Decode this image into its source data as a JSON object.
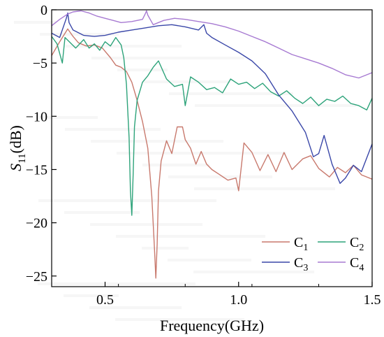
{
  "chart_data": {
    "type": "line",
    "title": "",
    "xlabel": "Frequency(GHz)",
    "ylabel": "S11(dB)",
    "ylabel_main": "S",
    "ylabel_sub": "11",
    "ylabel_unit": "(dB)",
    "xlim": [
      0.3,
      1.5
    ],
    "ylim": [
      -26,
      0
    ],
    "x_ticks": [
      0.5,
      1.0,
      1.5
    ],
    "x_tick_labels": [
      "0.5",
      "1.0",
      "1.5"
    ],
    "y_ticks": [
      0,
      -5,
      -10,
      -15,
      -20,
      -25
    ],
    "y_tick_labels": [
      "0",
      "−5",
      "−10",
      "−15",
      "−20",
      "−25"
    ],
    "grid": false,
    "legend_position": "bottom-right",
    "series": [
      {
        "name": "C1",
        "label_main": "C",
        "label_sub": "1",
        "color": "#c8796d",
        "x": [
          0.3,
          0.33,
          0.36,
          0.38,
          0.4,
          0.43,
          0.46,
          0.49,
          0.52,
          0.54,
          0.56,
          0.58,
          0.6,
          0.62,
          0.64,
          0.66,
          0.675,
          0.685,
          0.69,
          0.695,
          0.7,
          0.71,
          0.73,
          0.75,
          0.77,
          0.79,
          0.8,
          0.82,
          0.84,
          0.86,
          0.88,
          0.9,
          0.93,
          0.96,
          0.99,
          1.0,
          1.02,
          1.05,
          1.08,
          1.11,
          1.14,
          1.17,
          1.2,
          1.24,
          1.27,
          1.3,
          1.34,
          1.37,
          1.4,
          1.43,
          1.46,
          1.5
        ],
        "y": [
          -4.3,
          -3.0,
          -1.8,
          -2.5,
          -3.1,
          -3.4,
          -3.3,
          -3.6,
          -4.5,
          -5.2,
          -5.4,
          -5.8,
          -6.8,
          -8.5,
          -10.5,
          -13.0,
          -17.5,
          -22.5,
          -25.2,
          -22.0,
          -17.0,
          -14.2,
          -12.3,
          -13.5,
          -11.0,
          -11.0,
          -12.2,
          -13.0,
          -14.5,
          -13.3,
          -14.5,
          -15.0,
          -15.5,
          -16.0,
          -15.8,
          -17.0,
          -12.5,
          -13.4,
          -15.1,
          -13.6,
          -15.2,
          -13.4,
          -15.0,
          -14.0,
          -13.7,
          -14.9,
          -15.7,
          -14.8,
          -15.3,
          -14.6,
          -15.5,
          -15.9
        ]
      },
      {
        "name": "C2",
        "label_main": "C",
        "label_sub": "2",
        "color": "#2da37a",
        "x": [
          0.3,
          0.32,
          0.34,
          0.35,
          0.37,
          0.39,
          0.42,
          0.44,
          0.46,
          0.48,
          0.5,
          0.52,
          0.54,
          0.56,
          0.57,
          0.58,
          0.59,
          0.595,
          0.6,
          0.605,
          0.61,
          0.62,
          0.64,
          0.66,
          0.68,
          0.7,
          0.73,
          0.76,
          0.79,
          0.8,
          0.82,
          0.85,
          0.88,
          0.91,
          0.94,
          0.97,
          1.0,
          1.03,
          1.06,
          1.09,
          1.12,
          1.15,
          1.18,
          1.21,
          1.24,
          1.27,
          1.3,
          1.33,
          1.36,
          1.39,
          1.42,
          1.45,
          1.48,
          1.5
        ],
        "y": [
          -2.5,
          -3.2,
          -5.0,
          -2.6,
          -3.1,
          -3.6,
          -2.8,
          -3.6,
          -3.2,
          -3.8,
          -3.0,
          -3.4,
          -2.6,
          -3.3,
          -4.5,
          -7.0,
          -12.0,
          -17.0,
          -19.3,
          -15.5,
          -11.0,
          -8.5,
          -6.8,
          -6.2,
          -5.4,
          -4.8,
          -6.5,
          -7.2,
          -7.0,
          -9.0,
          -6.3,
          -6.8,
          -7.5,
          -7.3,
          -7.8,
          -6.5,
          -7.0,
          -6.8,
          -7.4,
          -6.9,
          -7.7,
          -8.1,
          -7.6,
          -8.3,
          -8.8,
          -8.2,
          -9.0,
          -8.4,
          -8.6,
          -8.1,
          -8.8,
          -9.0,
          -9.4,
          -8.3
        ]
      },
      {
        "name": "C3",
        "label_main": "C",
        "label_sub": "3",
        "color": "#3a47a8",
        "x": [
          0.3,
          0.33,
          0.355,
          0.36,
          0.365,
          0.38,
          0.42,
          0.46,
          0.5,
          0.55,
          0.6,
          0.65,
          0.7,
          0.75,
          0.8,
          0.85,
          0.87,
          0.88,
          0.9,
          0.95,
          1.0,
          1.05,
          1.1,
          1.15,
          1.2,
          1.25,
          1.28,
          1.3,
          1.32,
          1.35,
          1.38,
          1.4,
          1.43,
          1.46,
          1.5
        ],
        "y": [
          -2.2,
          -2.6,
          -0.8,
          -0.3,
          -1.2,
          -1.9,
          -2.4,
          -2.5,
          -2.4,
          -2.1,
          -1.9,
          -1.7,
          -1.5,
          -1.4,
          -1.6,
          -1.9,
          -1.4,
          -2.2,
          -2.6,
          -3.3,
          -4.0,
          -4.8,
          -6.0,
          -8.0,
          -9.5,
          -11.5,
          -13.8,
          -13.5,
          -11.8,
          -14.5,
          -16.3,
          -15.8,
          -14.6,
          -15.2,
          -12.6
        ]
      },
      {
        "name": "C4",
        "label_main": "C",
        "label_sub": "4",
        "color": "#a77ad2",
        "x": [
          0.3,
          0.33,
          0.36,
          0.38,
          0.41,
          0.44,
          0.47,
          0.5,
          0.53,
          0.56,
          0.6,
          0.64,
          0.65,
          0.655,
          0.66,
          0.68,
          0.72,
          0.76,
          0.8,
          0.85,
          0.9,
          0.95,
          1.0,
          1.05,
          1.1,
          1.15,
          1.2,
          1.25,
          1.3,
          1.35,
          1.4,
          1.45,
          1.5
        ],
        "y": [
          -1.5,
          -0.9,
          -0.4,
          -0.2,
          -0.1,
          -0.3,
          -0.6,
          -0.8,
          -1.0,
          -1.2,
          -1.1,
          -0.9,
          -0.4,
          -0.1,
          -0.5,
          -1.4,
          -1.0,
          -0.8,
          -0.9,
          -1.1,
          -1.3,
          -1.6,
          -2.0,
          -2.5,
          -3.0,
          -3.6,
          -4.2,
          -4.6,
          -5.0,
          -5.5,
          -6.1,
          -6.4,
          -5.9
        ]
      }
    ]
  }
}
